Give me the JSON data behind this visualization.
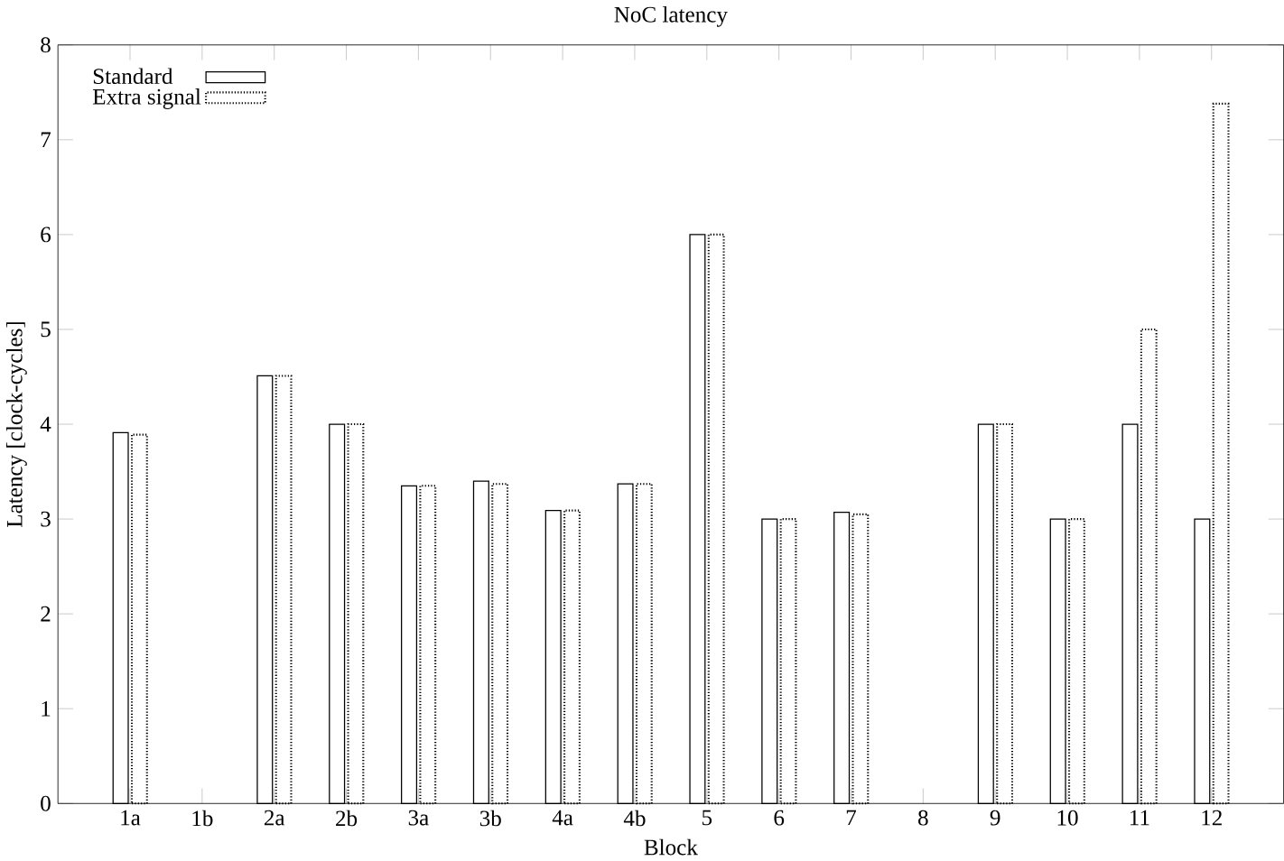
{
  "chart_data": {
    "type": "bar",
    "title": "NoC latency",
    "xlabel": "Block",
    "ylabel": "Latency [clock-cycles]",
    "categories": [
      "1a",
      "1b",
      "2a",
      "2b",
      "3a",
      "3b",
      "4a",
      "4b",
      "5",
      "6",
      "7",
      "8",
      "9",
      "10",
      "11",
      "12"
    ],
    "series": [
      {
        "name": "Standard",
        "color": "#ffffff",
        "line_style": "solid",
        "values": [
          3.91,
          null,
          4.51,
          4,
          3.35,
          3.4,
          3.09,
          3.37,
          6,
          3,
          3.07,
          null,
          4,
          3,
          4,
          3
        ]
      },
      {
        "name": "Extra signal",
        "color": "#ffffff",
        "line_style": "dotted",
        "values": [
          3.89,
          null,
          4.51,
          4,
          3.35,
          3.37,
          3.09,
          3.37,
          6,
          3,
          3.05,
          null,
          4,
          3,
          5,
          7.38
        ]
      }
    ],
    "ylim": [
      0,
      8
    ],
    "yticks": [
      0,
      1,
      2,
      3,
      4,
      5,
      6,
      7,
      8
    ],
    "grid": false,
    "legend": "top left"
  }
}
